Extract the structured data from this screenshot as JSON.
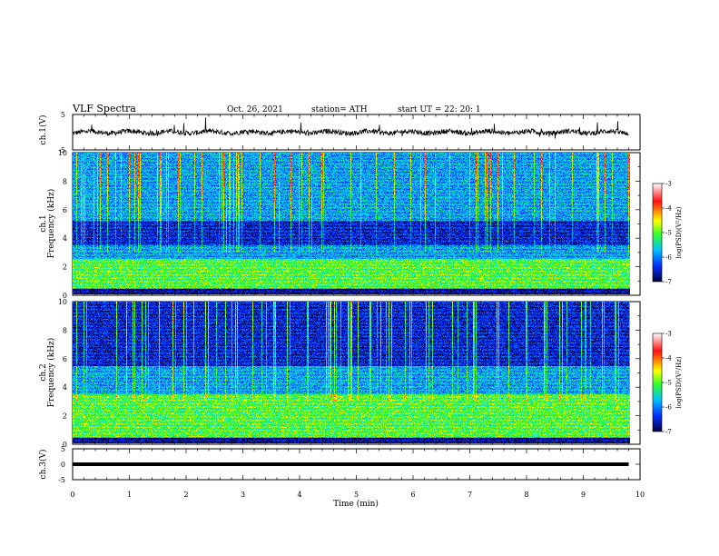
{
  "header": {
    "title": "VLF  Spectra",
    "date": "Oct. 26, 2021",
    "station": "station= ATH",
    "start": "start  UT  =    22: 20: 1"
  },
  "colorbar": {
    "label": "log(PSD)(V²/Hz)",
    "ticks": [
      "-3",
      "-4",
      "-5",
      "-6",
      "-7"
    ],
    "colors": [
      "#ffffff",
      "#ff1010",
      "#ffff00",
      "#30ff30",
      "#00c0ff",
      "#0030ff",
      "#000040"
    ]
  },
  "chart_data": [
    {
      "type": "line",
      "panel": "ch1-waveform",
      "ylabel": "ch.1(V)",
      "ylim": [
        -5,
        5
      ],
      "yticks": [
        "5",
        "-5"
      ],
      "xlim": [
        0,
        10
      ],
      "description": "noisy waveform near 0 V with sharp spikes",
      "level_V": 0,
      "duration_min": 9.8
    },
    {
      "type": "heatmap",
      "panel": "ch1-spectrogram",
      "ylabel": "ch.1\nFrequency  (kHz)",
      "ylim": [
        0,
        10
      ],
      "yticks": [
        "0",
        "2",
        "4",
        "6",
        "8",
        "10"
      ],
      "xlim": [
        0,
        10
      ],
      "duration_min": 9.8,
      "zlim": [
        -7,
        -3
      ],
      "dark_band_kHz": [
        3.5,
        5.2
      ],
      "bright_band_kHz": [
        0.5,
        2.5
      ]
    },
    {
      "type": "heatmap",
      "panel": "ch2-spectrogram",
      "ylabel": "ch.2\nFrequency  (kHz)",
      "ylim": [
        0,
        10
      ],
      "yticks": [
        "0",
        "2",
        "4",
        "6",
        "8",
        "10"
      ],
      "xlim": [
        0,
        10
      ],
      "duration_min": 9.8,
      "zlim": [
        -7,
        -3
      ],
      "dark_band_kHz": [
        5.5,
        10
      ],
      "bright_band_kHz": [
        0.5,
        3.5
      ]
    },
    {
      "type": "line",
      "panel": "ch3-waveform",
      "ylabel": "ch.3(V)",
      "ylim": [
        -5,
        5
      ],
      "yticks": [
        "5",
        "0",
        "-5"
      ],
      "xlim": [
        0,
        10
      ],
      "description": "flat thick line",
      "level_V": 0,
      "duration_min": 9.8
    }
  ],
  "xaxis": {
    "label": "Time  (min)",
    "ticks": [
      "0",
      "1",
      "2",
      "3",
      "4",
      "5",
      "6",
      "7",
      "8",
      "9",
      "10"
    ]
  }
}
